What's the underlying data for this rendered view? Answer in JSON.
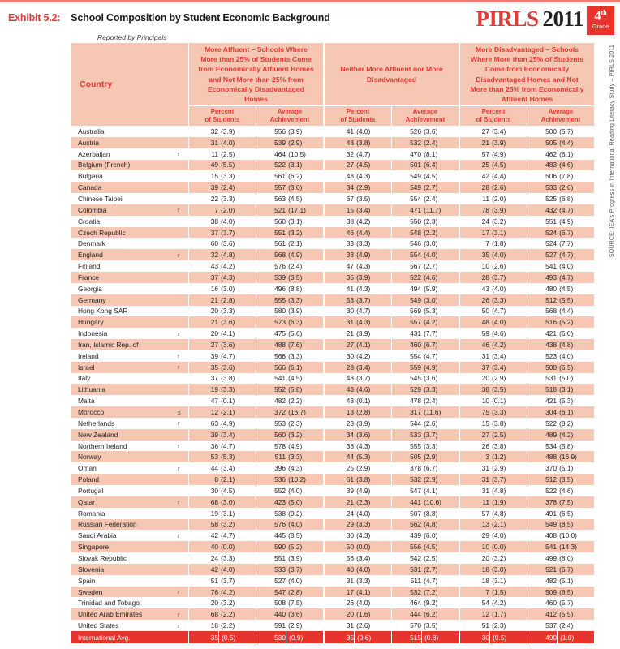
{
  "colors": {
    "accent_red": "#e23a36",
    "salmon": "#f6c7b3",
    "international_row_red": "#e9332d",
    "top_line": "#f2796d"
  },
  "header": {
    "exhibit_label": "Exhibit 5.2:",
    "title": "School Composition by Student Economic Background",
    "subtitle": "Reported by Principals"
  },
  "logo": {
    "pirls": "PIRLS",
    "year": "2011",
    "grade": "4",
    "grade_suffix": "th",
    "grade_label": "Grade"
  },
  "source_note": "SOURCE: IEA's Progress in International Reading Literacy Study – PIRLS 2011",
  "table": {
    "country_header": "Country",
    "groups": [
      {
        "title": "More Affluent – Schools Where More than 25% of Students Come from Economically Affluent Homes and Not More than 25% from Economically Disadvantaged Homes"
      },
      {
        "title": "Neither More Affluent nor More Disadvantaged"
      },
      {
        "title": "More Disadvantaged – Schools Where More than 25% of Students Come from Economically Disadvantaged Homes and Not More than 25% from Economically Affluent Homes"
      }
    ],
    "subheaders": {
      "percent": "Percent\nof Students",
      "average": "Average\nAchievement"
    },
    "rows": [
      {
        "country": "Australia",
        "flag": "",
        "cells": [
          "32 (3.9)",
          "556 (3.9)",
          "41 (4.0)",
          "526 (3.6)",
          "27 (3.4)",
          "500 (5.7)"
        ]
      },
      {
        "country": "Austria",
        "flag": "",
        "cells": [
          "31 (4.0)",
          "539 (2.9)",
          "48 (3.8)",
          "532 (2.4)",
          "21 (3.9)",
          "505 (4.4)"
        ]
      },
      {
        "country": "Azerbaijan",
        "flag": "r",
        "cells": [
          "11 (2.5)",
          "464 (10.5)",
          "32 (4.7)",
          "470 (8.1)",
          "57 (4.9)",
          "462 (6.1)"
        ]
      },
      {
        "country": "Belgium (French)",
        "flag": "",
        "cells": [
          "49 (5.5)",
          "522 (3.1)",
          "27 (4.5)",
          "501 (6.4)",
          "25 (4.5)",
          "483 (4.6)"
        ]
      },
      {
        "country": "Bulgaria",
        "flag": "",
        "cells": [
          "15 (3.3)",
          "561 (6.2)",
          "43 (4.3)",
          "549 (4.5)",
          "42 (4.4)",
          "506 (7.8)"
        ]
      },
      {
        "country": "Canada",
        "flag": "",
        "cells": [
          "39 (2.4)",
          "557 (3.0)",
          "34 (2.9)",
          "549 (2.7)",
          "28 (2.6)",
          "533 (2.6)"
        ]
      },
      {
        "country": "Chinese Taipei",
        "flag": "",
        "cells": [
          "22 (3.3)",
          "563 (4.5)",
          "67 (3.5)",
          "554 (2.4)",
          "11 (2.0)",
          "525 (6.8)"
        ]
      },
      {
        "country": "Colombia",
        "flag": "r",
        "cells": [
          "7 (2.0)",
          "521 (17.1)",
          "15 (3.4)",
          "471 (11.7)",
          "78 (3.9)",
          "432 (4.7)"
        ]
      },
      {
        "country": "Croatia",
        "flag": "",
        "cells": [
          "38 (4.0)",
          "560 (3.1)",
          "38 (4.2)",
          "550 (2.3)",
          "24 (3.2)",
          "551 (4.9)"
        ]
      },
      {
        "country": "Czech Republic",
        "flag": "",
        "cells": [
          "37 (3.7)",
          "551 (3.2)",
          "46 (4.4)",
          "548 (2.2)",
          "17 (3.1)",
          "524 (6.7)"
        ]
      },
      {
        "country": "Denmark",
        "flag": "",
        "cells": [
          "60 (3.6)",
          "561 (2.1)",
          "33 (3.3)",
          "546 (3.0)",
          "7 (1.8)",
          "524 (7.7)"
        ]
      },
      {
        "country": "England",
        "flag": "r",
        "cells": [
          "32 (4.8)",
          "568 (4.9)",
          "33 (4.9)",
          "554 (4.0)",
          "35 (4.0)",
          "527 (4.7)"
        ]
      },
      {
        "country": "Finland",
        "flag": "",
        "cells": [
          "43 (4.2)",
          "576 (2.4)",
          "47 (4.3)",
          "567 (2.7)",
          "10 (2.6)",
          "541 (4.0)"
        ]
      },
      {
        "country": "France",
        "flag": "",
        "cells": [
          "37 (4.3)",
          "539 (3.5)",
          "35 (3.9)",
          "522 (4.6)",
          "28 (3.7)",
          "493 (4.7)"
        ]
      },
      {
        "country": "Georgia",
        "flag": "",
        "cells": [
          "16 (3.0)",
          "496 (8.8)",
          "41 (4.3)",
          "494 (5.9)",
          "43 (4.0)",
          "480 (4.5)"
        ]
      },
      {
        "country": "Germany",
        "flag": "",
        "cells": [
          "21 (2.8)",
          "555 (3.3)",
          "53 (3.7)",
          "549 (3.0)",
          "26 (3.3)",
          "512 (5.5)"
        ]
      },
      {
        "country": "Hong Kong SAR",
        "flag": "",
        "cells": [
          "20 (3.3)",
          "580 (3.9)",
          "30 (4.7)",
          "569 (5.3)",
          "50 (4.7)",
          "568 (4.4)"
        ]
      },
      {
        "country": "Hungary",
        "flag": "",
        "cells": [
          "21 (3.6)",
          "573 (6.3)",
          "31 (4.3)",
          "557 (4.2)",
          "48 (4.0)",
          "516 (5.2)"
        ]
      },
      {
        "country": "Indonesia",
        "flag": "r",
        "cells": [
          "20 (4.1)",
          "475 (5.6)",
          "21 (3.9)",
          "431 (7.7)",
          "59 (4.6)",
          "421 (6.0)"
        ]
      },
      {
        "country": "Iran, Islamic Rep. of",
        "flag": "",
        "cells": [
          "27 (3.6)",
          "488 (7.6)",
          "27 (4.1)",
          "460 (6.7)",
          "46 (4.2)",
          "438 (4.8)"
        ]
      },
      {
        "country": "Ireland",
        "flag": "r",
        "cells": [
          "39 (4.7)",
          "568 (3.3)",
          "30 (4.2)",
          "554 (4.7)",
          "31 (3.4)",
          "523 (4.0)"
        ]
      },
      {
        "country": "Israel",
        "flag": "r",
        "cells": [
          "35 (3.6)",
          "566 (6.1)",
          "28 (3.4)",
          "559 (4.9)",
          "37 (3.4)",
          "500 (6.5)"
        ]
      },
      {
        "country": "Italy",
        "flag": "",
        "cells": [
          "37 (3.8)",
          "541 (4.5)",
          "43 (3.7)",
          "545 (3.6)",
          "20 (2.9)",
          "531 (5.0)"
        ]
      },
      {
        "country": "Lithuania",
        "flag": "",
        "cells": [
          "19 (3.3)",
          "552 (5.8)",
          "43 (4.6)",
          "529 (3.3)",
          "38 (3.5)",
          "518 (3.1)"
        ]
      },
      {
        "country": "Malta",
        "flag": "",
        "cells": [
          "47 (0.1)",
          "482 (2.2)",
          "43 (0.1)",
          "478 (2.4)",
          "10 (0.1)",
          "421 (5.3)"
        ]
      },
      {
        "country": "Morocco",
        "flag": "s",
        "cells": [
          "12 (2.1)",
          "372 (16.7)",
          "13 (2.8)",
          "317 (11.6)",
          "75 (3.3)",
          "304 (6.1)"
        ]
      },
      {
        "country": "Netherlands",
        "flag": "r",
        "cells": [
          "63 (4.9)",
          "553 (2.3)",
          "23 (3.9)",
          "544 (2.6)",
          "15 (3.8)",
          "522 (8.2)"
        ]
      },
      {
        "country": "New Zealand",
        "flag": "",
        "cells": [
          "39 (3.4)",
          "560 (3.2)",
          "34 (3.6)",
          "533 (3.7)",
          "27 (2.5)",
          "489 (4.2)"
        ]
      },
      {
        "country": "Northern Ireland",
        "flag": "r",
        "cells": [
          "36 (4.7)",
          "578 (4.9)",
          "38 (4.3)",
          "555 (3.3)",
          "26 (3.8)",
          "534 (5.8)"
        ]
      },
      {
        "country": "Norway",
        "flag": "",
        "cells": [
          "53 (5.3)",
          "511 (3.3)",
          "44 (5.3)",
          "505 (2.9)",
          "3 (1.2)",
          "488 (16.9)"
        ]
      },
      {
        "country": "Oman",
        "flag": "r",
        "cells": [
          "44 (3.4)",
          "396 (4.3)",
          "25 (2.9)",
          "378 (6.7)",
          "31 (2.9)",
          "370 (5.1)"
        ]
      },
      {
        "country": "Poland",
        "flag": "",
        "cells": [
          "8 (2.1)",
          "536 (10.2)",
          "61 (3.8)",
          "532 (2.9)",
          "31 (3.7)",
          "512 (3.5)"
        ]
      },
      {
        "country": "Portugal",
        "flag": "",
        "cells": [
          "30 (4.5)",
          "552 (4.0)",
          "39 (4.9)",
          "547 (4.1)",
          "31 (4.8)",
          "522 (4.6)"
        ]
      },
      {
        "country": "Qatar",
        "flag": "r",
        "cells": [
          "68 (3.0)",
          "423 (5.0)",
          "21 (2.3)",
          "441 (10.6)",
          "11 (1.9)",
          "378 (7.5)"
        ]
      },
      {
        "country": "Romania",
        "flag": "",
        "cells": [
          "19 (3.1)",
          "538 (9.2)",
          "24 (4.0)",
          "507 (8.8)",
          "57 (4.8)",
          "491 (6.5)"
        ]
      },
      {
        "country": "Russian Federation",
        "flag": "",
        "cells": [
          "58 (3.2)",
          "576 (4.0)",
          "29 (3.3)",
          "562 (4.8)",
          "13 (2.1)",
          "549 (8.5)"
        ]
      },
      {
        "country": "Saudi Arabia",
        "flag": "r",
        "cells": [
          "42 (4.7)",
          "445 (8.5)",
          "30 (4.3)",
          "439 (6.0)",
          "29 (4.0)",
          "408 (10.0)"
        ]
      },
      {
        "country": "Singapore",
        "flag": "",
        "cells": [
          "40 (0.0)",
          "590 (5.2)",
          "50 (0.0)",
          "556 (4.5)",
          "10 (0.0)",
          "541 (14.3)"
        ]
      },
      {
        "country": "Slovak Republic",
        "flag": "",
        "cells": [
          "24 (3.3)",
          "551 (3.9)",
          "56 (3.4)",
          "542 (2.5)",
          "20 (3.2)",
          "499 (8.0)"
        ]
      },
      {
        "country": "Slovenia",
        "flag": "",
        "cells": [
          "42 (4.0)",
          "533 (3.7)",
          "40 (4.0)",
          "531 (2.7)",
          "18 (3.0)",
          "521 (6.7)"
        ]
      },
      {
        "country": "Spain",
        "flag": "",
        "cells": [
          "51 (3.7)",
          "527 (4.0)",
          "31 (3.3)",
          "511 (4.7)",
          "18 (3.1)",
          "482 (5.1)"
        ]
      },
      {
        "country": "Sweden",
        "flag": "r",
        "cells": [
          "76 (4.2)",
          "547 (2.8)",
          "17 (4.1)",
          "532 (7.2)",
          "7 (1.5)",
          "509 (8.5)"
        ]
      },
      {
        "country": "Trinidad and Tobago",
        "flag": "",
        "cells": [
          "20 (3.2)",
          "508 (7.5)",
          "26 (4.0)",
          "464 (9.2)",
          "54 (4.2)",
          "460 (5.7)"
        ]
      },
      {
        "country": "United Arab Emirates",
        "flag": "r",
        "cells": [
          "68 (2.2)",
          "440 (3.6)",
          "20 (1.6)",
          "444 (6.2)",
          "12 (1.7)",
          "412 (5.5)"
        ]
      },
      {
        "country": "United States",
        "flag": "r",
        "cells": [
          "18 (2.2)",
          "591 (2.9)",
          "31 (2.6)",
          "570 (3.5)",
          "51 (2.3)",
          "537 (2.4)"
        ]
      }
    ],
    "international": {
      "country": "International Avg.",
      "flag": "",
      "cells": [
        "35 (0.5)",
        "530 (0.9)",
        "35 (0.6)",
        "515 (0.8)",
        "30 (0.5)",
        "490 (1.0)"
      ]
    }
  }
}
